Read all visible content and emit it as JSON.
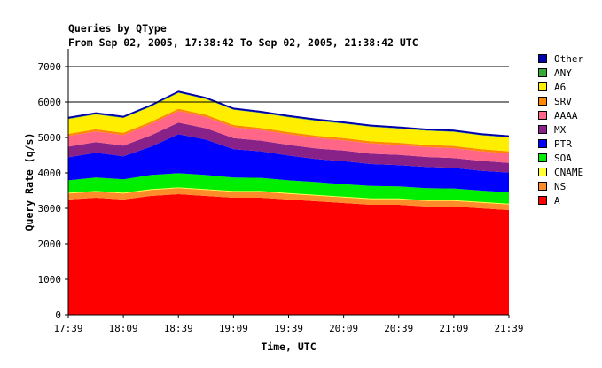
{
  "chart_data": {
    "type": "area",
    "stacked": true,
    "title": "Queries by QType",
    "subtitle": "From Sep 02, 2005, 17:38:42 To Sep 02, 2005, 21:38:42 UTC",
    "xlabel": "Time, UTC",
    "ylabel": "Query Rate (q/s)",
    "x_ticks": [
      "17:39",
      "18:09",
      "18:39",
      "19:09",
      "19:39",
      "20:09",
      "20:39",
      "21:09",
      "21:39"
    ],
    "y_ticks": [
      0,
      1000,
      2000,
      3000,
      4000,
      5000,
      6000,
      7000
    ],
    "ylim": [
      0,
      7500
    ],
    "grid": "horizontal at 6000 and 7000",
    "legend_position": "right",
    "x": [
      "17:39",
      "17:54",
      "18:09",
      "18:24",
      "18:39",
      "18:54",
      "19:09",
      "19:24",
      "19:39",
      "19:54",
      "20:09",
      "20:24",
      "20:39",
      "20:54",
      "21:09",
      "21:24",
      "21:39"
    ],
    "series": [
      {
        "name": "A",
        "color": "#ff0000",
        "values": [
          3250,
          3300,
          3250,
          3350,
          3400,
          3350,
          3300,
          3300,
          3250,
          3200,
          3150,
          3100,
          3100,
          3050,
          3050,
          3000,
          2950
        ]
      },
      {
        "name": "NS",
        "color": "#ff8c2a",
        "values": [
          170,
          170,
          170,
          170,
          170,
          170,
          170,
          170,
          160,
          160,
          160,
          160,
          160,
          160,
          160,
          160,
          160
        ]
      },
      {
        "name": "CNAME",
        "color": "#ffff33",
        "values": [
          20,
          20,
          20,
          20,
          20,
          20,
          20,
          20,
          20,
          20,
          20,
          20,
          20,
          20,
          20,
          20,
          20
        ]
      },
      {
        "name": "SOA",
        "color": "#00ee00",
        "values": [
          350,
          380,
          380,
          400,
          400,
          400,
          380,
          370,
          360,
          360,
          350,
          350,
          340,
          340,
          330,
          320,
          320
        ]
      },
      {
        "name": "PTR",
        "color": "#0000ff",
        "values": [
          650,
          700,
          650,
          800,
          1100,
          1000,
          800,
          750,
          700,
          650,
          650,
          620,
          600,
          600,
          580,
          560,
          560
        ]
      },
      {
        "name": "MX",
        "color": "#882288",
        "values": [
          300,
          300,
          300,
          320,
          330,
          320,
          310,
          300,
          300,
          300,
          300,
          290,
          290,
          280,
          280,
          280,
          270
        ]
      },
      {
        "name": "AAAA",
        "color": "#ff6688",
        "values": [
          300,
          300,
          300,
          320,
          330,
          320,
          310,
          300,
          300,
          300,
          290,
          290,
          280,
          280,
          280,
          270,
          270
        ]
      },
      {
        "name": "SRV",
        "color": "#ff8800",
        "values": [
          60,
          60,
          60,
          60,
          60,
          60,
          60,
          60,
          60,
          60,
          60,
          60,
          60,
          60,
          60,
          60,
          60
        ]
      },
      {
        "name": "A6",
        "color": "#ffee00",
        "values": [
          420,
          420,
          420,
          430,
          450,
          440,
          430,
          420,
          420,
          420,
          410,
          410,
          400,
          400,
          400,
          390,
          390
        ]
      },
      {
        "name": "ANY",
        "color": "#33aa33",
        "values": [
          10,
          10,
          10,
          10,
          10,
          10,
          10,
          10,
          10,
          10,
          10,
          10,
          10,
          10,
          10,
          10,
          10
        ]
      },
      {
        "name": "Other",
        "color": "#0000aa",
        "values": [
          50,
          50,
          50,
          50,
          50,
          50,
          50,
          50,
          50,
          50,
          50,
          50,
          50,
          50,
          50,
          50,
          50
        ]
      }
    ]
  },
  "legend_order": [
    "Other",
    "ANY",
    "A6",
    "SRV",
    "AAAA",
    "MX",
    "PTR",
    "SOA",
    "CNAME",
    "NS",
    "A"
  ]
}
